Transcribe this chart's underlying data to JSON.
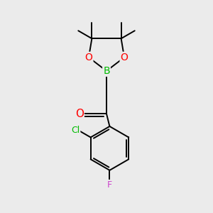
{
  "bg_color": "#ebebeb",
  "atom_colors": {
    "O": "#ff0000",
    "B": "#00bb00",
    "Cl": "#00bb00",
    "F": "#cc44cc"
  },
  "bond_color": "#000000",
  "bond_width": 1.4
}
